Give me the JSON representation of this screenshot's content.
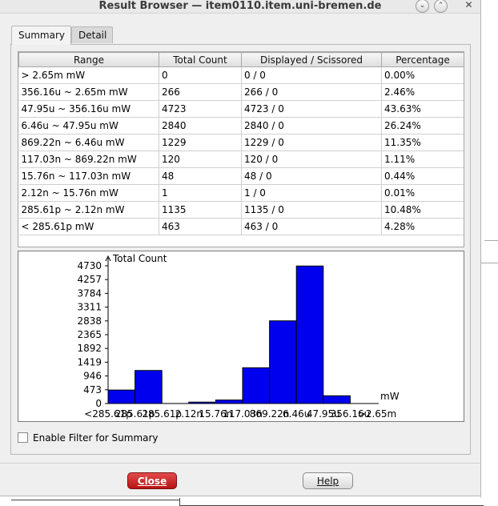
{
  "window": {
    "title": "Result Browser — item0110.item.uni-bremen.de",
    "controls": [
      {
        "name": "minimize",
        "glyph": "⌄"
      },
      {
        "name": "maximize",
        "glyph": "⌃"
      },
      {
        "name": "close",
        "glyph": "✕"
      }
    ]
  },
  "tabs": [
    {
      "label": "Summary",
      "active": true
    },
    {
      "label": "Detail",
      "active": false
    }
  ],
  "table": {
    "headers": [
      "Range",
      "Total Count",
      "Displayed / Scissored",
      "Percentage"
    ],
    "rows": [
      [
        "> 2.65m mW",
        "0",
        "0 / 0",
        "0.00%"
      ],
      [
        "356.16u ~ 2.65m mW",
        "266",
        "266 / 0",
        "2.46%"
      ],
      [
        "47.95u ~ 356.16u mW",
        "4723",
        "4723 / 0",
        "43.63%"
      ],
      [
        "6.46u ~ 47.95u mW",
        "2840",
        "2840 / 0",
        "26.24%"
      ],
      [
        "869.22n ~ 6.46u mW",
        "1229",
        "1229 / 0",
        "11.35%"
      ],
      [
        "117.03n ~ 869.22n mW",
        "120",
        "120 / 0",
        "1.11%"
      ],
      [
        "15.76n ~ 117.03n mW",
        "48",
        "48 / 0",
        "0.44%"
      ],
      [
        "2.12n ~ 15.76n mW",
        "1",
        "1 / 0",
        "0.01%"
      ],
      [
        "285.61p ~ 2.12n mW",
        "1135",
        "1135 / 0",
        "10.48%"
      ],
      [
        "< 285.61p mW",
        "463",
        "463 / 0",
        "4.28%"
      ]
    ]
  },
  "chart_data": {
    "type": "bar",
    "ylabel": "Total Count",
    "xlabel": "mW",
    "ylim": [
      0,
      4730
    ],
    "yticks": [
      0,
      473,
      946,
      1419,
      1892,
      2365,
      2838,
      3311,
      3784,
      4257,
      4730
    ],
    "xticks": [
      "<285.61p",
      "285.61p",
      "285.61p",
      "2.12n",
      "15.76n",
      "117.03n",
      "869.22n",
      "6.46u",
      "47.95u",
      "356.16u",
      ">2.65m"
    ],
    "categories": [
      "< 285.61p",
      "285.61p ~ 2.12n",
      "2.12n ~ 15.76n",
      "15.76n ~ 117.03n",
      "117.03n ~ 869.22n",
      "869.22n ~ 6.46u",
      "6.46u ~ 47.95u",
      "47.95u ~ 356.16u",
      "356.16u ~ 2.65m",
      "> 2.65m"
    ],
    "values": [
      463,
      1135,
      1,
      48,
      120,
      1229,
      2840,
      4723,
      266,
      0
    ],
    "bar_color": "#0000ee"
  },
  "filter": {
    "label": "Enable Filter for Summary",
    "checked": false
  },
  "buttons": {
    "close": "Close",
    "help": "Help"
  }
}
